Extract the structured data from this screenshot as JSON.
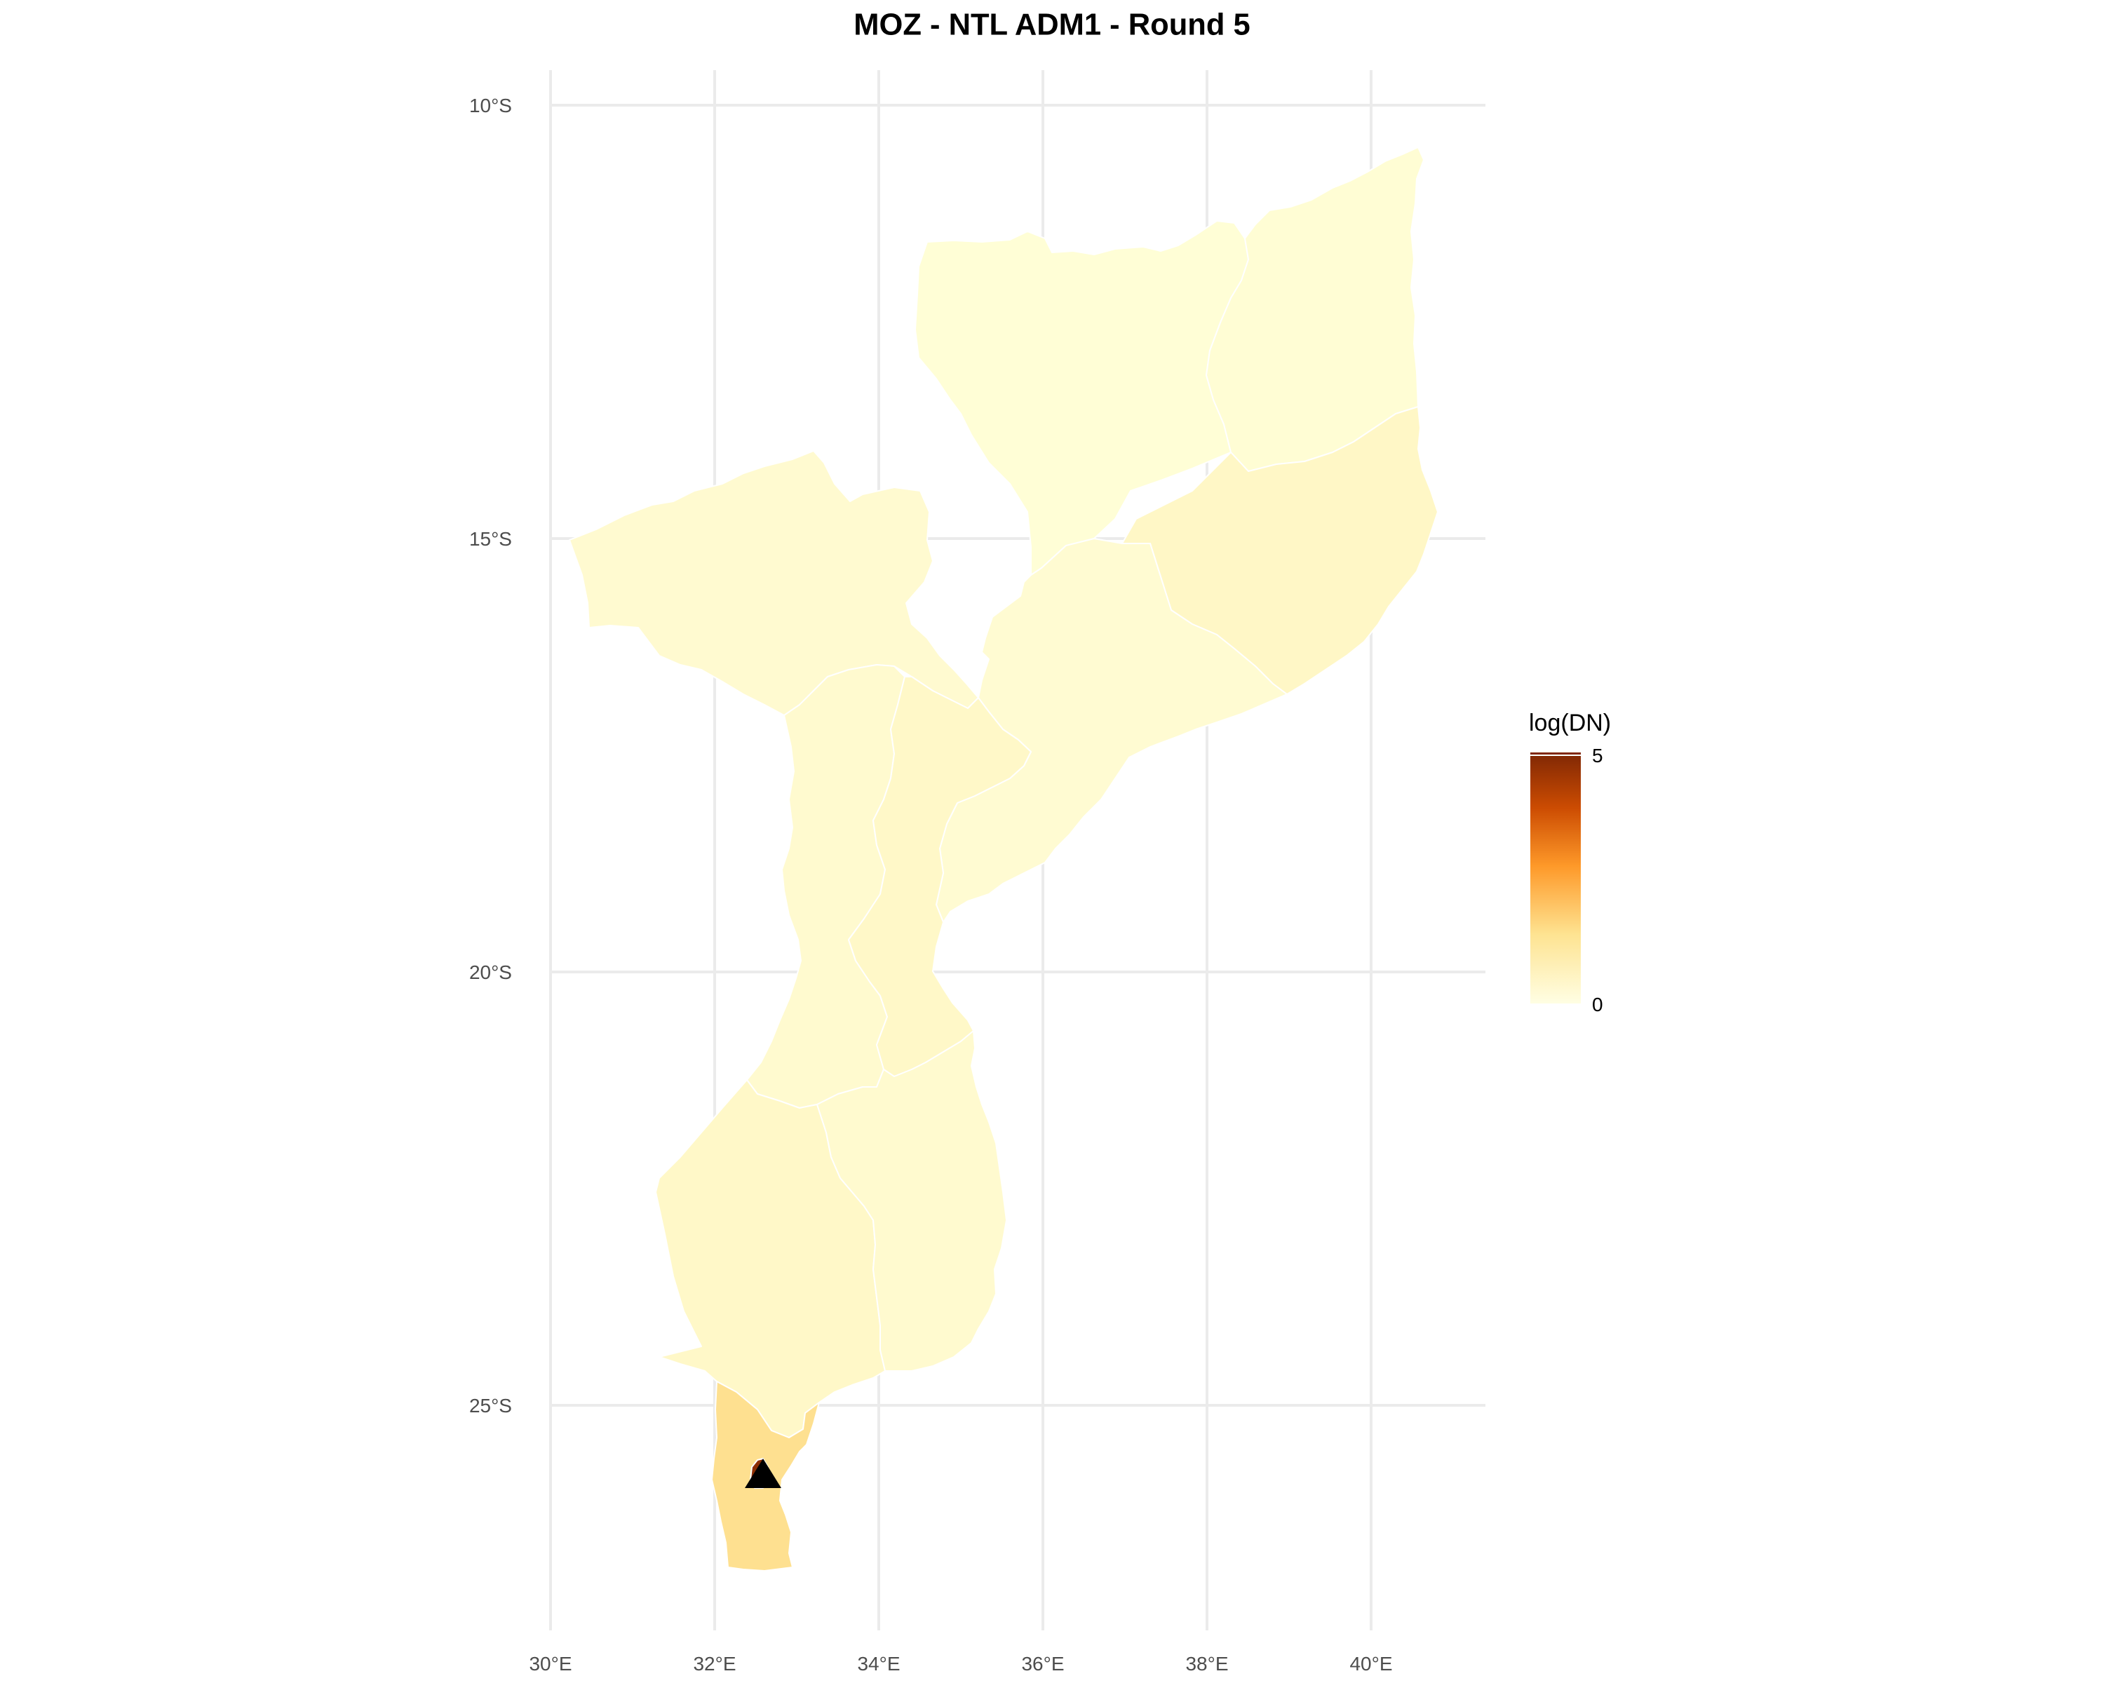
{
  "title": "MOZ - NTL ADM1 - Round 5",
  "x_ticks": [
    {
      "value": 30,
      "label": "30°E"
    },
    {
      "value": 32,
      "label": "32°E"
    },
    {
      "value": 34,
      "label": "34°E"
    },
    {
      "value": 36,
      "label": "36°E"
    },
    {
      "value": 38,
      "label": "38°E"
    },
    {
      "value": 40,
      "label": "40°E"
    }
  ],
  "y_ticks": [
    {
      "value": -10,
      "label": "10°S"
    },
    {
      "value": -15,
      "label": "15°S"
    },
    {
      "value": -20,
      "label": "20°S"
    },
    {
      "value": -25,
      "label": "25°S"
    }
  ],
  "legend": {
    "title": "log(DN)",
    "min_label": "0",
    "max_label": "5",
    "min": 0,
    "max": 5,
    "colors": [
      "#ffffe5",
      "#fee391",
      "#fe9929",
      "#cc4c02",
      "#7f2704"
    ]
  },
  "regions": [
    {
      "id": "niassa",
      "value": 0.05,
      "fill": "#fffed6"
    },
    {
      "id": "cabo-delgado",
      "value": 0.1,
      "fill": "#fffdd4"
    },
    {
      "id": "nampula",
      "value": 0.3,
      "fill": "#fff7c6"
    },
    {
      "id": "tete",
      "value": 0.15,
      "fill": "#fffad0"
    },
    {
      "id": "zambezia",
      "value": 0.15,
      "fill": "#fffbd2"
    },
    {
      "id": "manica",
      "value": 0.15,
      "fill": "#fffacf"
    },
    {
      "id": "sofala",
      "value": 0.3,
      "fill": "#fff8c8"
    },
    {
      "id": "gaza",
      "value": 0.3,
      "fill": "#fff8c8"
    },
    {
      "id": "inhambane",
      "value": 0.15,
      "fill": "#fffacf"
    },
    {
      "id": "maputo",
      "value": 1.1,
      "fill": "#fee090"
    },
    {
      "id": "maputo-city",
      "value": 4.5,
      "fill": "#8c2d04"
    }
  ],
  "marker": {
    "lon": 32.58,
    "lat": -25.92,
    "shape": "triangle",
    "color": "#000000"
  }
}
